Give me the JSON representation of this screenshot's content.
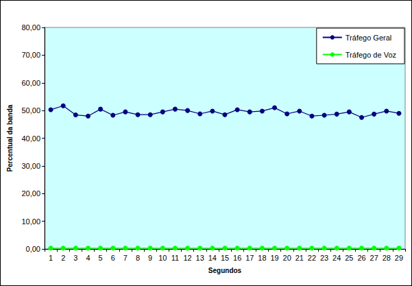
{
  "chart_data": {
    "type": "line",
    "x_label": "Segundos",
    "y_label": "Percentual da banda",
    "categories": [
      "1",
      "2",
      "3",
      "4",
      "5",
      "6",
      "7",
      "8",
      "9",
      "10",
      "11",
      "12",
      "13",
      "14",
      "15",
      "16",
      "17",
      "18",
      "19",
      "20",
      "21",
      "22",
      "23",
      "24",
      "25",
      "26",
      "27",
      "28",
      "29"
    ],
    "series": [
      {
        "name": "Tráfego Geral",
        "color": "#000080",
        "marker": "circle",
        "line_style": "solid",
        "values": [
          50.3,
          51.7,
          48.4,
          48.0,
          50.5,
          48.3,
          49.5,
          48.5,
          48.5,
          49.5,
          50.5,
          50.0,
          48.8,
          49.8,
          48.5,
          50.3,
          49.5,
          49.8,
          51.0,
          48.8,
          49.8,
          48.0,
          48.3,
          48.7,
          49.5,
          47.5,
          48.7,
          49.8,
          49.0
        ]
      },
      {
        "name": "Tráfego de Voz",
        "color": "#00ff00",
        "marker": "circle",
        "line_style": "solid",
        "values": [
          0.3,
          0.3,
          0.3,
          0.3,
          0.3,
          0.3,
          0.3,
          0.3,
          0.3,
          0.3,
          0.3,
          0.3,
          0.3,
          0.3,
          0.3,
          0.3,
          0.3,
          0.3,
          0.3,
          0.3,
          0.3,
          0.3,
          0.3,
          0.3,
          0.3,
          0.3,
          0.3,
          0.3,
          0.3
        ]
      }
    ],
    "ylim": [
      0,
      80
    ],
    "yticks": [
      {
        "value": 0,
        "label": "0,00"
      },
      {
        "value": 10,
        "label": "10,00"
      },
      {
        "value": 20,
        "label": "20,00"
      },
      {
        "value": 30,
        "label": "30,00"
      },
      {
        "value": 40,
        "label": "40,00"
      },
      {
        "value": 50,
        "label": "50,00"
      },
      {
        "value": 60,
        "label": "60,00"
      },
      {
        "value": 70,
        "label": "70,00"
      },
      {
        "value": 80,
        "label": "80,00"
      }
    ],
    "grid": false,
    "legend": "top-right"
  }
}
